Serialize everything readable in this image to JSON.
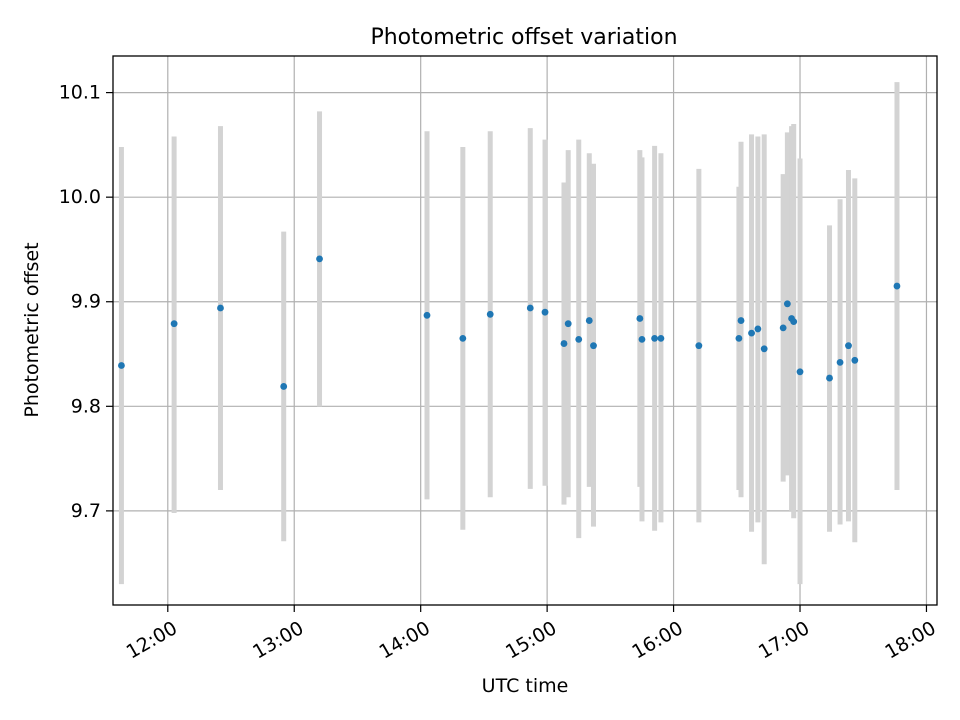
{
  "chart_data": {
    "type": "scatter",
    "title": "Photometric offset variation",
    "xlabel": "UTC time",
    "ylabel": "Photometric offset",
    "x_ticks": [
      "12:00",
      "13:00",
      "14:00",
      "15:00",
      "16:00",
      "17:00",
      "18:00"
    ],
    "y_ticks": [
      "9.7",
      "9.8",
      "9.9",
      "10.0",
      "10.1"
    ],
    "xlim": [
      "11:34",
      "18:05"
    ],
    "ylim": [
      9.61,
      10.135
    ],
    "grid": true,
    "marker_color": "#1f77b4",
    "errorbar_color": "#d3d3d3",
    "points": [
      {
        "x": "11:38",
        "y": 9.839,
        "lo": 9.63,
        "hi": 10.048
      },
      {
        "x": "12:03",
        "y": 9.879,
        "lo": 9.698,
        "hi": 10.058
      },
      {
        "x": "12:25",
        "y": 9.894,
        "lo": 9.72,
        "hi": 10.068
      },
      {
        "x": "12:55",
        "y": 9.819,
        "lo": 9.671,
        "hi": 9.967
      },
      {
        "x": "13:12",
        "y": 9.941,
        "lo": 9.8,
        "hi": 10.082
      },
      {
        "x": "14:03",
        "y": 9.887,
        "lo": 9.711,
        "hi": 10.063
      },
      {
        "x": "14:20",
        "y": 9.865,
        "lo": 9.682,
        "hi": 10.048
      },
      {
        "x": "14:33",
        "y": 9.888,
        "lo": 9.713,
        "hi": 10.063
      },
      {
        "x": "14:52",
        "y": 9.894,
        "lo": 9.721,
        "hi": 10.066
      },
      {
        "x": "14:59",
        "y": 9.89,
        "lo": 9.724,
        "hi": 10.055
      },
      {
        "x": "15:08",
        "y": 9.86,
        "lo": 9.706,
        "hi": 10.014
      },
      {
        "x": "15:10",
        "y": 9.879,
        "lo": 9.713,
        "hi": 10.045
      },
      {
        "x": "15:15",
        "y": 9.864,
        "lo": 9.674,
        "hi": 10.055
      },
      {
        "x": "15:20",
        "y": 9.882,
        "lo": 9.723,
        "hi": 10.042
      },
      {
        "x": "15:22",
        "y": 9.858,
        "lo": 9.685,
        "hi": 10.032
      },
      {
        "x": "15:44",
        "y": 9.884,
        "lo": 9.723,
        "hi": 10.045
      },
      {
        "x": "15:45",
        "y": 9.864,
        "lo": 9.69,
        "hi": 10.038
      },
      {
        "x": "15:51",
        "y": 9.865,
        "lo": 9.681,
        "hi": 10.049
      },
      {
        "x": "15:54",
        "y": 9.865,
        "lo": 9.689,
        "hi": 10.042
      },
      {
        "x": "16:12",
        "y": 9.858,
        "lo": 9.689,
        "hi": 10.027
      },
      {
        "x": "16:31",
        "y": 9.865,
        "lo": 9.72,
        "hi": 10.01
      },
      {
        "x": "16:32",
        "y": 9.882,
        "lo": 9.713,
        "hi": 10.053
      },
      {
        "x": "16:37",
        "y": 9.87,
        "lo": 9.68,
        "hi": 10.06
      },
      {
        "x": "16:40",
        "y": 9.874,
        "lo": 9.689,
        "hi": 10.058
      },
      {
        "x": "16:43",
        "y": 9.855,
        "lo": 9.649,
        "hi": 10.06
      },
      {
        "x": "16:52",
        "y": 9.875,
        "lo": 9.728,
        "hi": 10.022
      },
      {
        "x": "16:54",
        "y": 9.898,
        "lo": 9.734,
        "hi": 10.062
      },
      {
        "x": "16:56",
        "y": 9.884,
        "lo": 9.7,
        "hi": 10.068
      },
      {
        "x": "16:57",
        "y": 9.881,
        "lo": 9.693,
        "hi": 10.07
      },
      {
        "x": "17:00",
        "y": 9.833,
        "lo": 9.63,
        "hi": 10.037
      },
      {
        "x": "17:14",
        "y": 9.827,
        "lo": 9.68,
        "hi": 9.973
      },
      {
        "x": "17:19",
        "y": 9.842,
        "lo": 9.687,
        "hi": 9.998
      },
      {
        "x": "17:23",
        "y": 9.858,
        "lo": 9.69,
        "hi": 10.026
      },
      {
        "x": "17:26",
        "y": 9.844,
        "lo": 9.67,
        "hi": 10.018
      },
      {
        "x": "17:46",
        "y": 9.915,
        "lo": 9.72,
        "hi": 10.11
      }
    ]
  }
}
